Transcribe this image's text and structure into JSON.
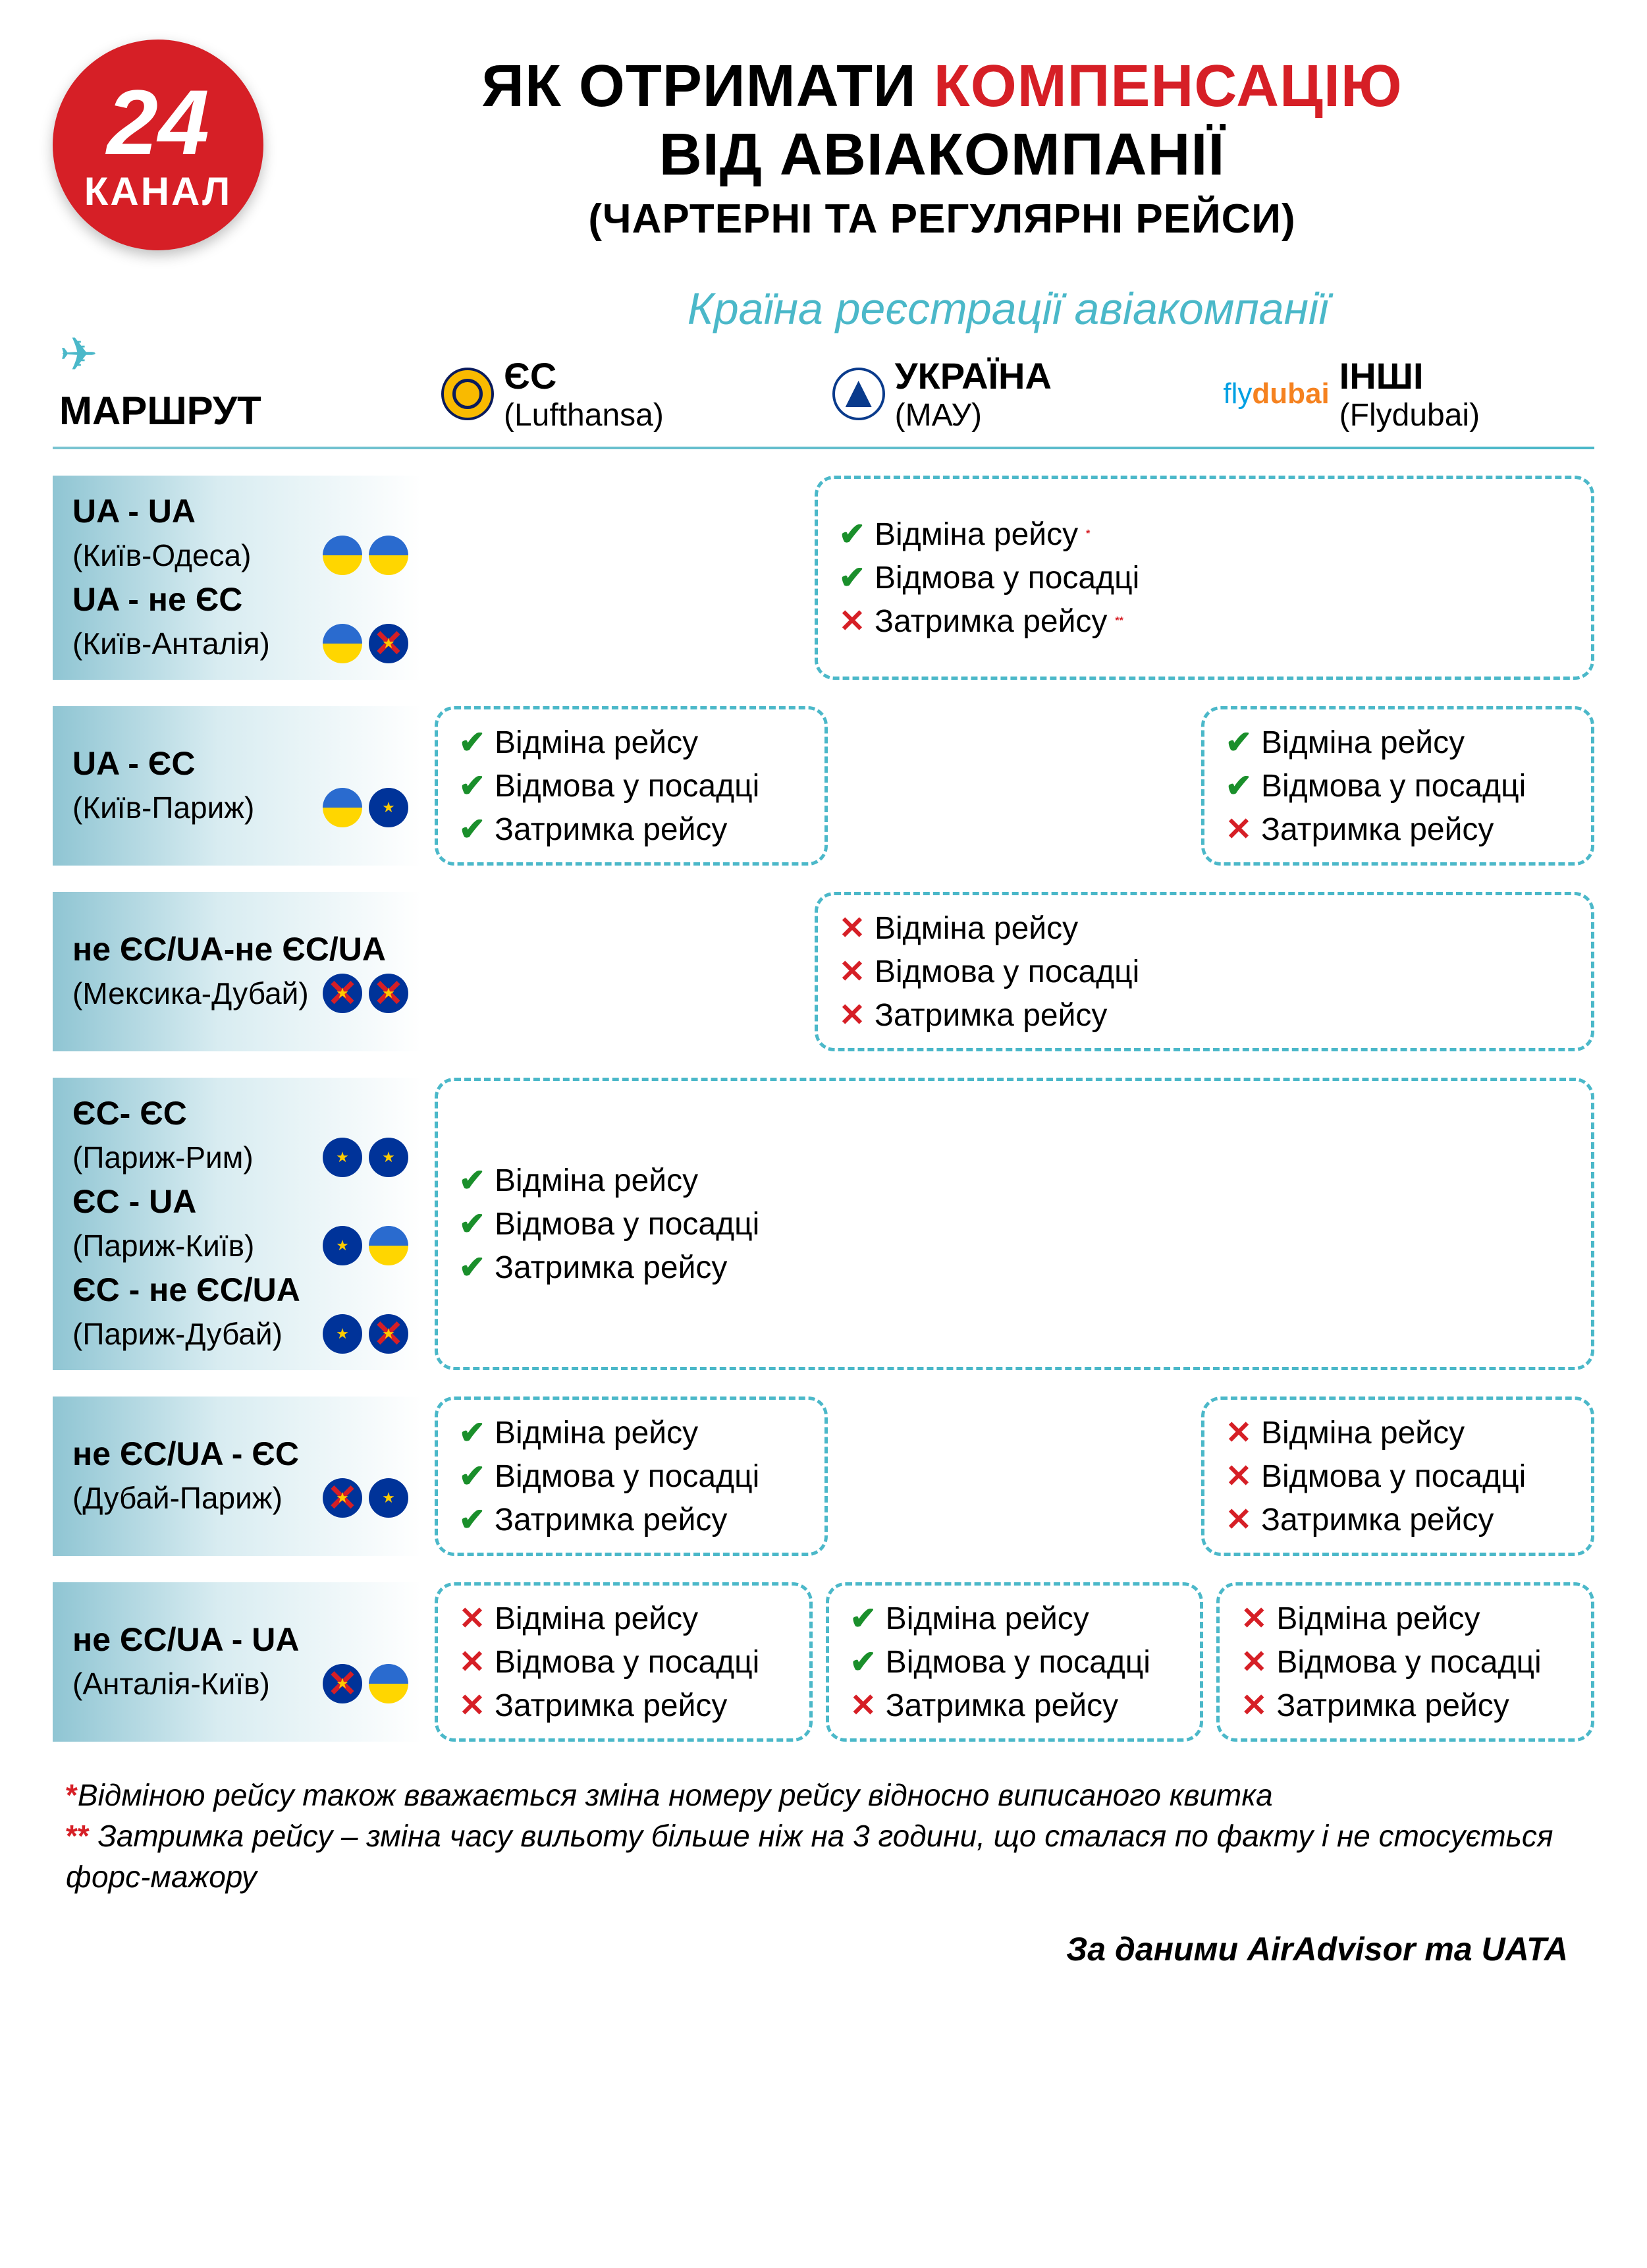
{
  "logo": {
    "num": "24",
    "word": "КАНАЛ"
  },
  "title": {
    "l1a": "ЯК ОТРИМАТИ ",
    "l1b": "КОМПЕНСАЦІЮ",
    "l2": "ВІД АВІАКОМПАНІЇ",
    "sub": "(ЧАРТЕРНІ ТА РЕГУЛЯРНІ РЕЙСИ)"
  },
  "headers": {
    "route": "МАРШРУТ",
    "super": "Країна реєстрації авіакомпанії",
    "cols": [
      {
        "name": "ЄС",
        "ex": "(Lufthansa)"
      },
      {
        "name": "УКРАЇНА",
        "ex": "(МАУ)"
      },
      {
        "name": "ІНШІ",
        "ex": "(Flydubai)"
      }
    ],
    "fly_a": "fly",
    "fly_b": "dubai"
  },
  "reasons": {
    "cancel": "Відміна рейсу",
    "deny": "Відмова у посадці",
    "delay": "Затримка рейсу"
  },
  "rows": [
    {
      "routes": [
        {
          "code": "UA - UA",
          "city": "(Київ-Одеса)",
          "flags": [
            "ua",
            "ua"
          ]
        },
        {
          "code": "UA - не ЄС",
          "city": "(Київ-Анталія)",
          "flags": [
            "ua",
            "x-eu"
          ]
        }
      ],
      "cells": {
        "eu": null,
        "ua": {
          "cancel": "ok",
          "deny": "ok",
          "delay": "no",
          "star_cancel": "*",
          "star_delay": "**"
        },
        "other": null,
        "wide": "right"
      }
    },
    {
      "routes": [
        {
          "code": "UA - ЄС",
          "city": "(Київ-Париж)",
          "flags": [
            "ua",
            "eu"
          ]
        }
      ],
      "cells": {
        "eu": {
          "cancel": "ok",
          "deny": "ok",
          "delay": "ok"
        },
        "ua": null,
        "other": {
          "cancel": "ok",
          "deny": "ok",
          "delay": "no"
        }
      }
    },
    {
      "routes": [
        {
          "code": "не ЄС/UA-не ЄС/UA",
          "city": "(Мексика-Дубай)",
          "flags": [
            "x-eu",
            "x-eu"
          ]
        }
      ],
      "cells": {
        "eu": null,
        "ua": {
          "cancel": "no",
          "deny": "no",
          "delay": "no"
        },
        "other": null,
        "wide": "right"
      }
    },
    {
      "routes": [
        {
          "code": "ЄС- ЄС",
          "city": "(Париж-Рим)",
          "flags": [
            "eu",
            "eu"
          ]
        },
        {
          "code": "ЄС - UA",
          "city": "(Париж-Київ)",
          "flags": [
            "eu",
            "ua"
          ]
        },
        {
          "code": "ЄС - не ЄС/UA",
          "city": "(Париж-Дубай)",
          "flags": [
            "eu",
            "x-eu"
          ]
        }
      ],
      "cells": {
        "full": {
          "cancel": "ok",
          "deny": "ok",
          "delay": "ok"
        }
      }
    },
    {
      "routes": [
        {
          "code": "не ЄС/UA - ЄС",
          "city": "(Дубай-Париж)",
          "flags": [
            "x-eu",
            "eu"
          ]
        }
      ],
      "cells": {
        "eu": {
          "cancel": "ok",
          "deny": "ok",
          "delay": "ok"
        },
        "ua": null,
        "other": {
          "cancel": "no",
          "deny": "no",
          "delay": "no"
        }
      }
    },
    {
      "routes": [
        {
          "code": "не ЄС/UA - UA",
          "city": "(Анталія-Київ)",
          "flags": [
            "x-eu",
            "ua"
          ]
        }
      ],
      "cells": {
        "eu": {
          "cancel": "no",
          "deny": "no",
          "delay": "no"
        },
        "ua": {
          "cancel": "ok",
          "deny": "ok",
          "delay": "no"
        },
        "other": {
          "cancel": "no",
          "deny": "no",
          "delay": "no"
        }
      }
    }
  ],
  "footnotes": {
    "f1": "Відміною рейсу також вважається зміна номеру рейсу відносно виписаного квитка",
    "f2": "Затримка рейсу – зміна часу вильоту більше ніж на 3 години, що сталася по факту і не стосується форс-мажору",
    "s1": "*",
    "s2": "**"
  },
  "credit": "За даними AirAdvisor та UATA"
}
